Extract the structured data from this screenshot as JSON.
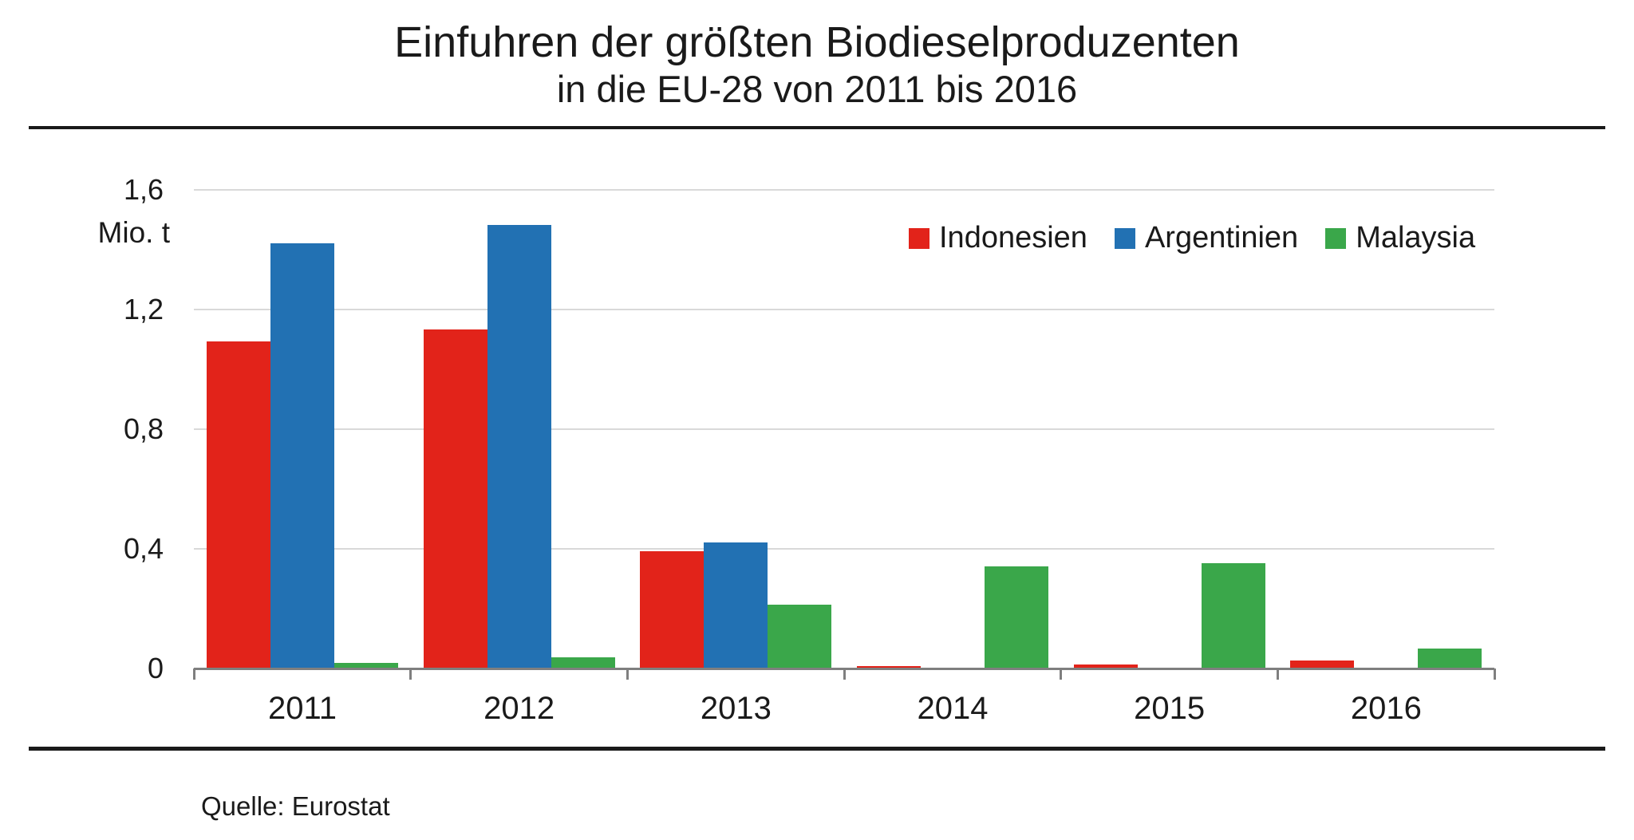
{
  "title": {
    "line1": "Einfuhren der größten Biodieselproduzenten",
    "line2": "in die EU-28 von 2011 bis 2016"
  },
  "axis": {
    "unit_label": "Mio. t",
    "yticks": [
      {
        "value": 1.6,
        "label": "1,6"
      },
      {
        "value": 1.2,
        "label": "1,2"
      },
      {
        "value": 0.8,
        "label": "0,8"
      },
      {
        "value": 0.4,
        "label": "0,4"
      },
      {
        "value": 0.0,
        "label": "0"
      }
    ]
  },
  "source": {
    "label": "Quelle: Eurostat"
  },
  "colors": {
    "indonesien": "#e2231a",
    "argentinien": "#2271b3",
    "malaysia": "#3aa74a",
    "gridline": "#d9d9d9",
    "axis_line": "#7f7f7f",
    "text": "#1a1a1a"
  },
  "chart_data": {
    "type": "bar",
    "title": "Einfuhren der größten Biodieselproduzenten in die EU-28 von 2011 bis 2016",
    "categories": [
      "2011",
      "2012",
      "2013",
      "2014",
      "2015",
      "2016"
    ],
    "series": [
      {
        "name": "Indonesien",
        "color": "#e2231a",
        "values": [
          1.09,
          1.13,
          0.39,
          0.005,
          0.01,
          0.025
        ]
      },
      {
        "name": "Argentinien",
        "color": "#2271b3",
        "values": [
          1.42,
          1.48,
          0.42,
          0,
          0,
          0
        ]
      },
      {
        "name": "Malaysia",
        "color": "#3aa74a",
        "values": [
          0.015,
          0.035,
          0.21,
          0.34,
          0.35,
          0.065
        ]
      }
    ],
    "xlabel": "",
    "ylabel": "Mio. t",
    "ylim": [
      0,
      1.6
    ],
    "grid": true,
    "legend_position": "top-right",
    "source": "Quelle: Eurostat"
  }
}
